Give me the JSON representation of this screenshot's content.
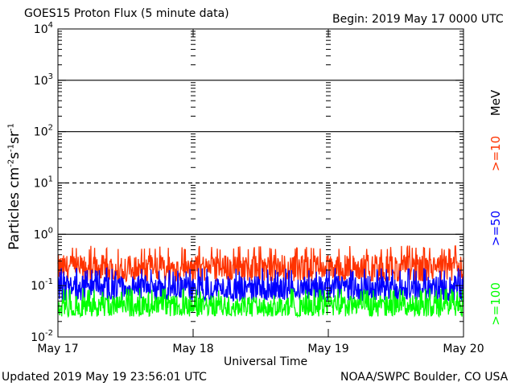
{
  "header": {
    "title": "GOES15 Proton Flux (5 minute data)",
    "begin": "Begin: 2019 May 17 0000 UTC"
  },
  "footer": {
    "updated": "Updated 2019 May 19 23:56:01 UTC",
    "source": "NOAA/SWPC Boulder, CO USA"
  },
  "legend": {
    "unit": "MeV",
    "items": [
      {
        "label": ">=10",
        "color": "#ff3300"
      },
      {
        "label": ">=50",
        "color": "#0000ff"
      },
      {
        "label": ">=100",
        "color": "#00ff00"
      }
    ]
  },
  "chart_data": {
    "type": "line",
    "title": "GOES15 Proton Flux (5 minute data)",
    "xlabel": "Universal Time",
    "ylabel_base": "Particles cm",
    "ylabel_units": [
      "-2",
      "-1",
      "-1"
    ],
    "yscale": "log",
    "ylim": [
      0.01,
      10000
    ],
    "y_ticks": [
      {
        "base": "10",
        "exp": "-2",
        "value": 0.01
      },
      {
        "base": "10",
        "exp": "-1",
        "value": 0.1
      },
      {
        "base": "10",
        "exp": "0",
        "value": 1
      },
      {
        "base": "10",
        "exp": "1",
        "value": 10
      },
      {
        "base": "10",
        "exp": "2",
        "value": 100
      },
      {
        "base": "10",
        "exp": "3",
        "value": 1000
      },
      {
        "base": "10",
        "exp": "4",
        "value": 10000
      }
    ],
    "x_ticks": [
      "May 17",
      "May 18",
      "May 19",
      "May 20"
    ],
    "xlim_days": [
      0,
      3
    ],
    "reference_lines": [
      {
        "value": 1,
        "style": "solid"
      },
      {
        "value": 10,
        "style": "dashed"
      },
      {
        "value": 100,
        "style": "solid"
      },
      {
        "value": 1000,
        "style": "solid"
      }
    ],
    "series": [
      {
        "name": ">=10",
        "color": "#ff3300",
        "range": [
          0.12,
          0.6
        ],
        "typical": 0.22
      },
      {
        "name": ">=50",
        "color": "#0000ff",
        "range": [
          0.05,
          0.22
        ],
        "typical": 0.09
      },
      {
        "name": ">=100",
        "color": "#00ff00",
        "range": [
          0.025,
          0.09
        ],
        "typical": 0.04
      }
    ]
  }
}
